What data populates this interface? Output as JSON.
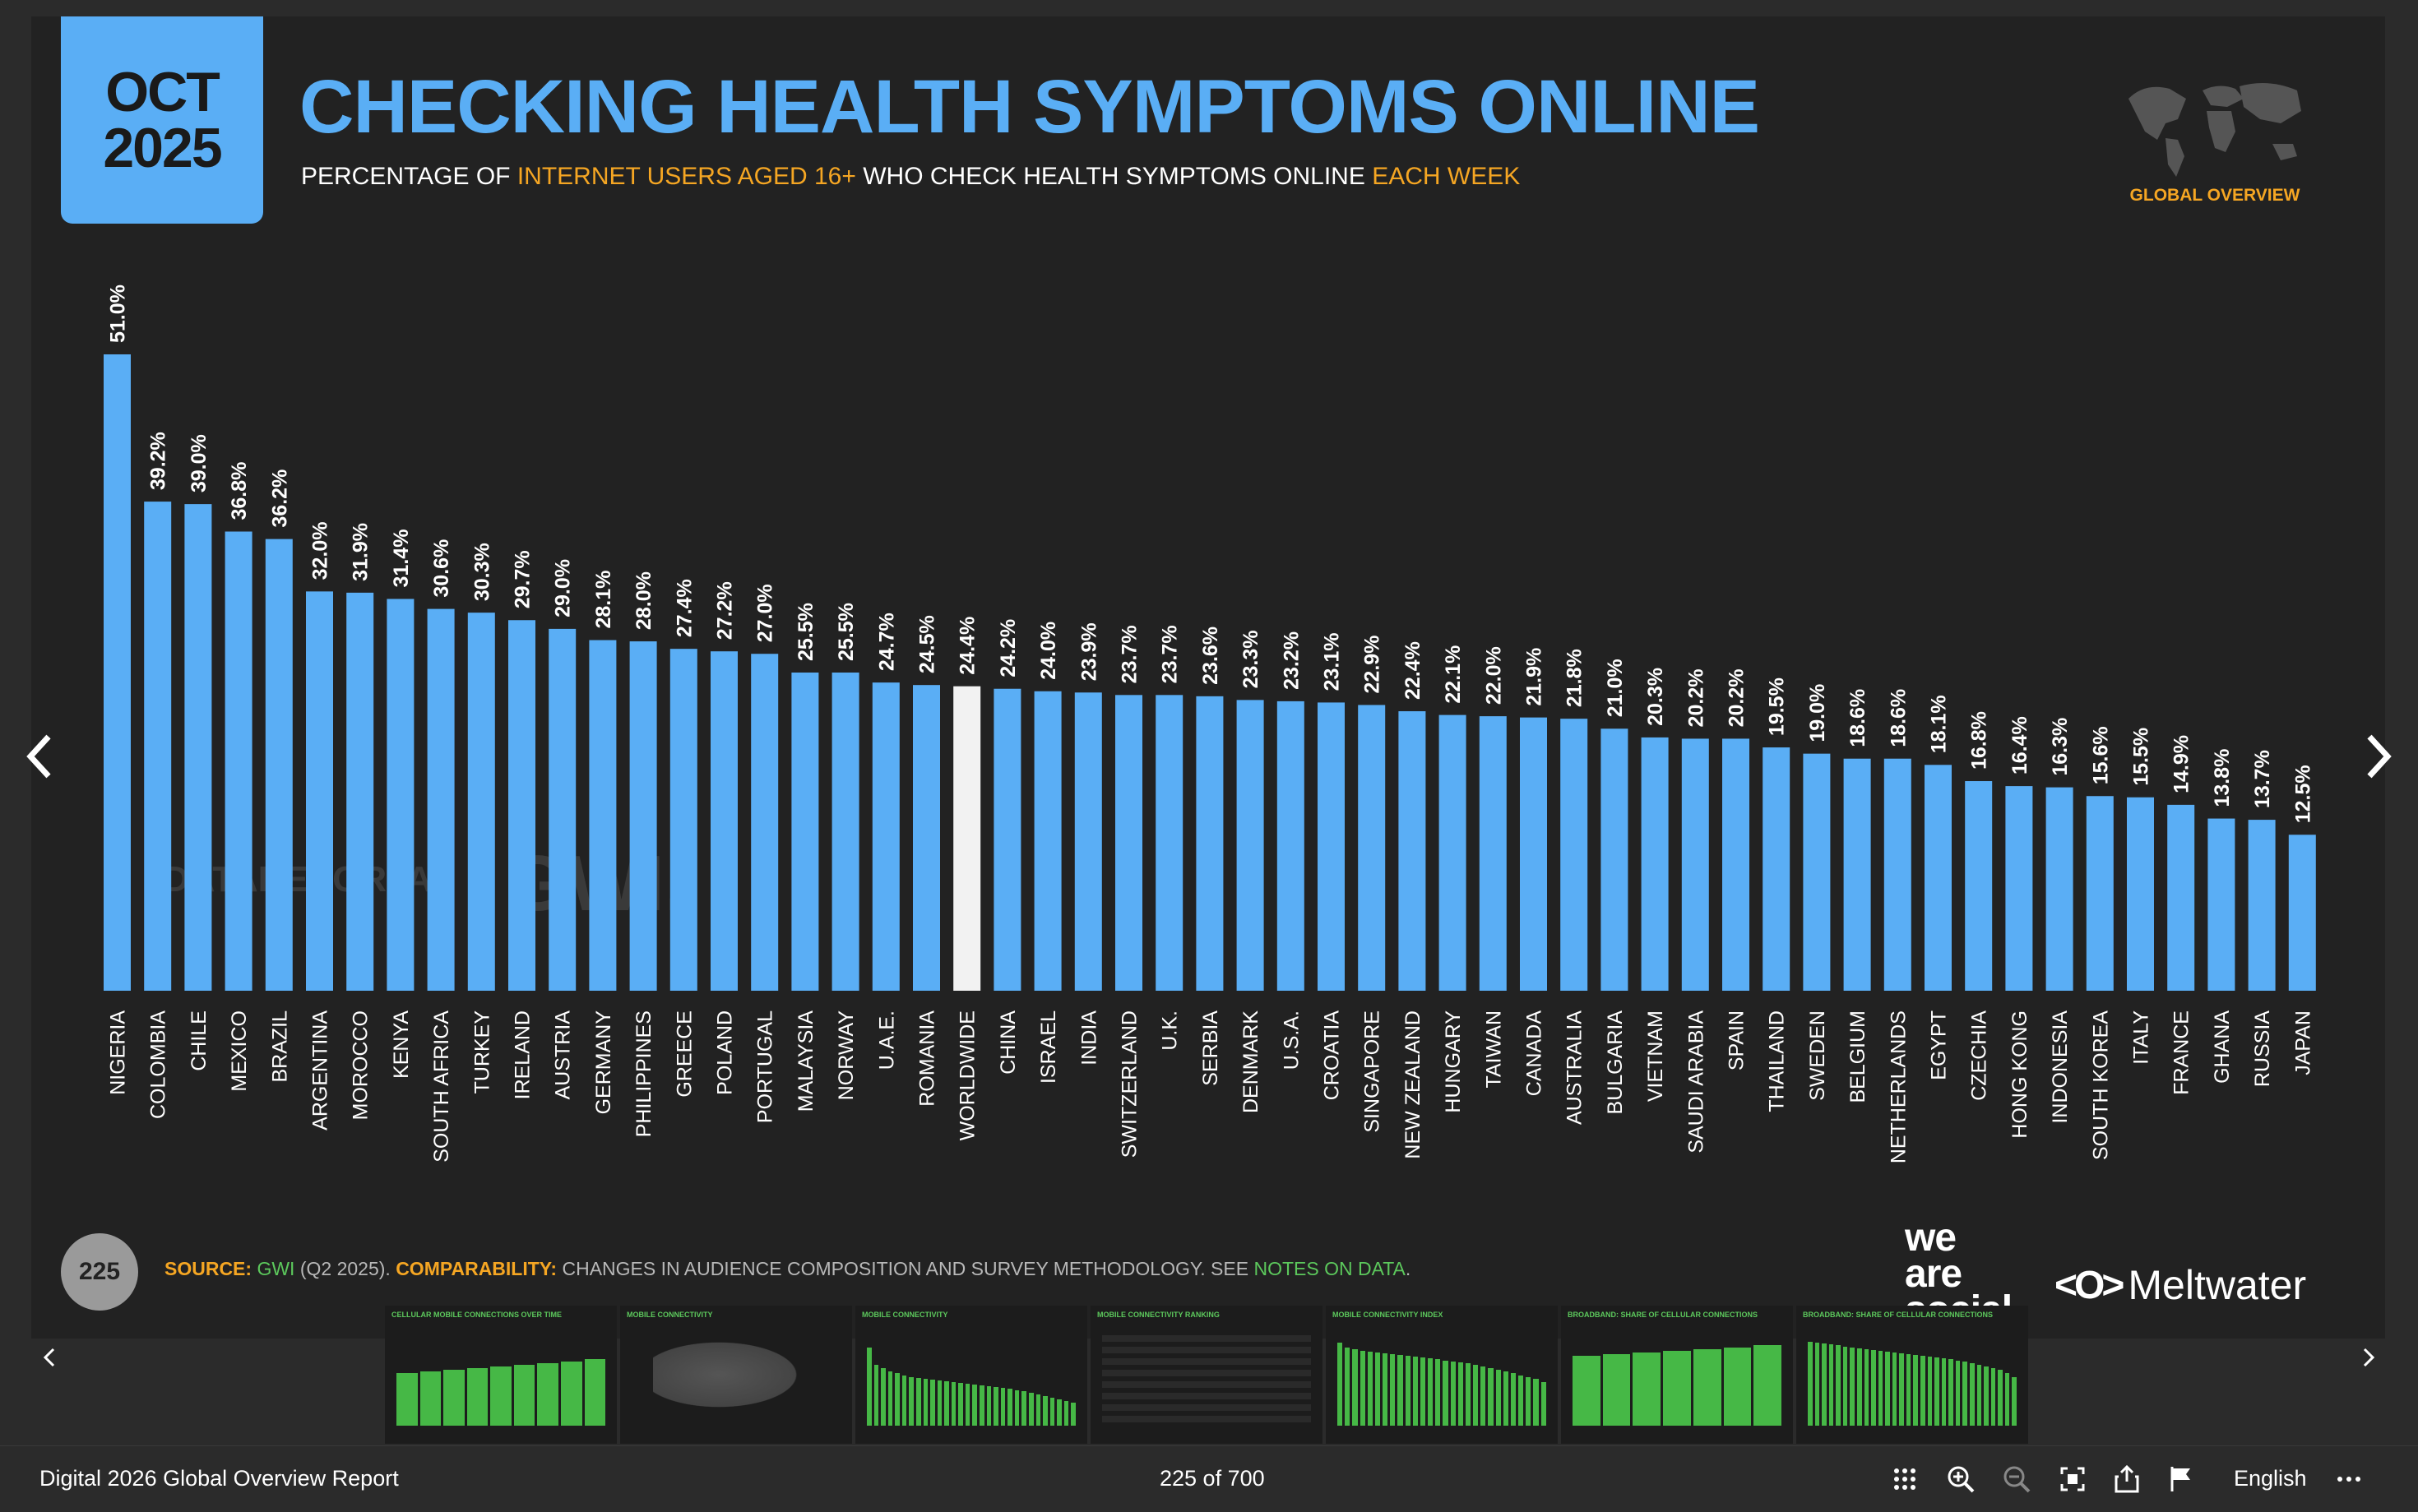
{
  "slide": {
    "date_month": "OCT",
    "date_year": "2025",
    "title": "CHECKING HEALTH SYMPTOMS ONLINE",
    "subtitle_part1": "PERCENTAGE OF ",
    "subtitle_highlight1": "INTERNET USERS AGED 16+",
    "subtitle_part2": " WHO CHECK HEALTH SYMPTOMS ONLINE ",
    "subtitle_highlight2": "EACH WEEK",
    "global_overview": "GLOBAL OVERVIEW",
    "watermark_datareportal": "DATAREPORTAL",
    "watermark_gwi": "GWI.",
    "page_number": "225",
    "source_label": "SOURCE:",
    "source_value": "GWI",
    "source_period": " (Q2 2025). ",
    "comparability_label": "COMPARABILITY:",
    "comparability_text": " CHANGES IN AUDIENCE COMPOSITION AND SURVEY METHODOLOGY. SEE ",
    "notes_link": "NOTES ON DATA",
    "notes_end": ".",
    "brand_we": "we",
    "brand_are": "are",
    "brand_social": "social",
    "brand_meltwater_mark": "<O>",
    "brand_meltwater": "Meltwater",
    "accent_color": "#5aaef5",
    "highlight_color": "#f5a623"
  },
  "chart_data": {
    "type": "bar",
    "categories": [
      "NIGERIA",
      "COLOMBIA",
      "CHILE",
      "MEXICO",
      "BRAZIL",
      "ARGENTINA",
      "MOROCCO",
      "KENYA",
      "SOUTH AFRICA",
      "TURKEY",
      "IRELAND",
      "AUSTRIA",
      "GERMANY",
      "PHILIPPINES",
      "GREECE",
      "POLAND",
      "PORTUGAL",
      "MALAYSIA",
      "NORWAY",
      "U.A.E.",
      "ROMANIA",
      "WORLDWIDE",
      "CHINA",
      "ISRAEL",
      "INDIA",
      "SWITZERLAND",
      "U.K.",
      "SERBIA",
      "DENMARK",
      "U.S.A.",
      "CROATIA",
      "SINGAPORE",
      "NEW ZEALAND",
      "HUNGARY",
      "TAIWAN",
      "CANADA",
      "AUSTRALIA",
      "BULGARIA",
      "VIETNAM",
      "SAUDI ARABIA",
      "SPAIN",
      "THAILAND",
      "SWEDEN",
      "BELGIUM",
      "NETHERLANDS",
      "EGYPT",
      "CZECHIA",
      "HONG KONG",
      "INDONESIA",
      "SOUTH KOREA",
      "ITALY",
      "FRANCE",
      "GHANA",
      "RUSSIA",
      "JAPAN"
    ],
    "values": [
      51.0,
      39.2,
      39.0,
      36.8,
      36.2,
      32.0,
      31.9,
      31.4,
      30.6,
      30.3,
      29.7,
      29.0,
      28.1,
      28.0,
      27.4,
      27.2,
      27.0,
      25.5,
      25.5,
      24.7,
      24.5,
      24.4,
      24.2,
      24.0,
      23.9,
      23.7,
      23.7,
      23.6,
      23.3,
      23.2,
      23.1,
      22.9,
      22.4,
      22.1,
      22.0,
      21.9,
      21.8,
      21.0,
      20.3,
      20.2,
      20.2,
      19.5,
      19.0,
      18.6,
      18.6,
      18.1,
      16.8,
      16.4,
      16.3,
      15.6,
      15.5,
      14.9,
      13.8,
      13.7,
      12.5
    ],
    "labels": [
      "51.0%",
      "39.2%",
      "39.0%",
      "36.8%",
      "36.2%",
      "32.0%",
      "31.9%",
      "31.4%",
      "30.6%",
      "30.3%",
      "29.7%",
      "29.0%",
      "28.1%",
      "28.0%",
      "27.4%",
      "27.2%",
      "27.0%",
      "25.5%",
      "25.5%",
      "24.7%",
      "24.5%",
      "24.4%",
      "24.2%",
      "24.0%",
      "23.9%",
      "23.7%",
      "23.7%",
      "23.6%",
      "23.3%",
      "23.2%",
      "23.1%",
      "22.9%",
      "22.4%",
      "22.1%",
      "22.0%",
      "21.9%",
      "21.8%",
      "21.0%",
      "20.3%",
      "20.2%",
      "20.2%",
      "19.5%",
      "19.0%",
      "18.6%",
      "18.6%",
      "18.1%",
      "16.8%",
      "16.4%",
      "16.3%",
      "15.6%",
      "15.5%",
      "14.9%",
      "13.8%",
      "13.7%",
      "12.5%"
    ],
    "highlight_category": "WORLDWIDE",
    "bar_color": "#5aaef5",
    "highlight_color": "#f2f2f2",
    "ylim": [
      0,
      51.0
    ],
    "title": "",
    "xlabel": "",
    "ylabel": ""
  },
  "thumbnails": [
    {
      "title": "CELLULAR MOBILE CONNECTIONS OVER TIME",
      "kind": "bars"
    },
    {
      "title": "MOBILE CONNECTIVITY",
      "kind": "map"
    },
    {
      "title": "MOBILE CONNECTIVITY",
      "kind": "bars"
    },
    {
      "title": "MOBILE CONNECTIVITY RANKING",
      "kind": "table"
    },
    {
      "title": "MOBILE CONNECTIVITY INDEX",
      "kind": "bars"
    },
    {
      "title": "BROADBAND: SHARE OF CELLULAR CONNECTIONS",
      "kind": "bars"
    },
    {
      "title": "BROADBAND: SHARE OF CELLULAR CONNECTIONS",
      "kind": "bars"
    }
  ],
  "viewer": {
    "doc_title": "Digital 2026 Global Overview Report",
    "page_indicator": "225 of 700",
    "language": "English"
  }
}
